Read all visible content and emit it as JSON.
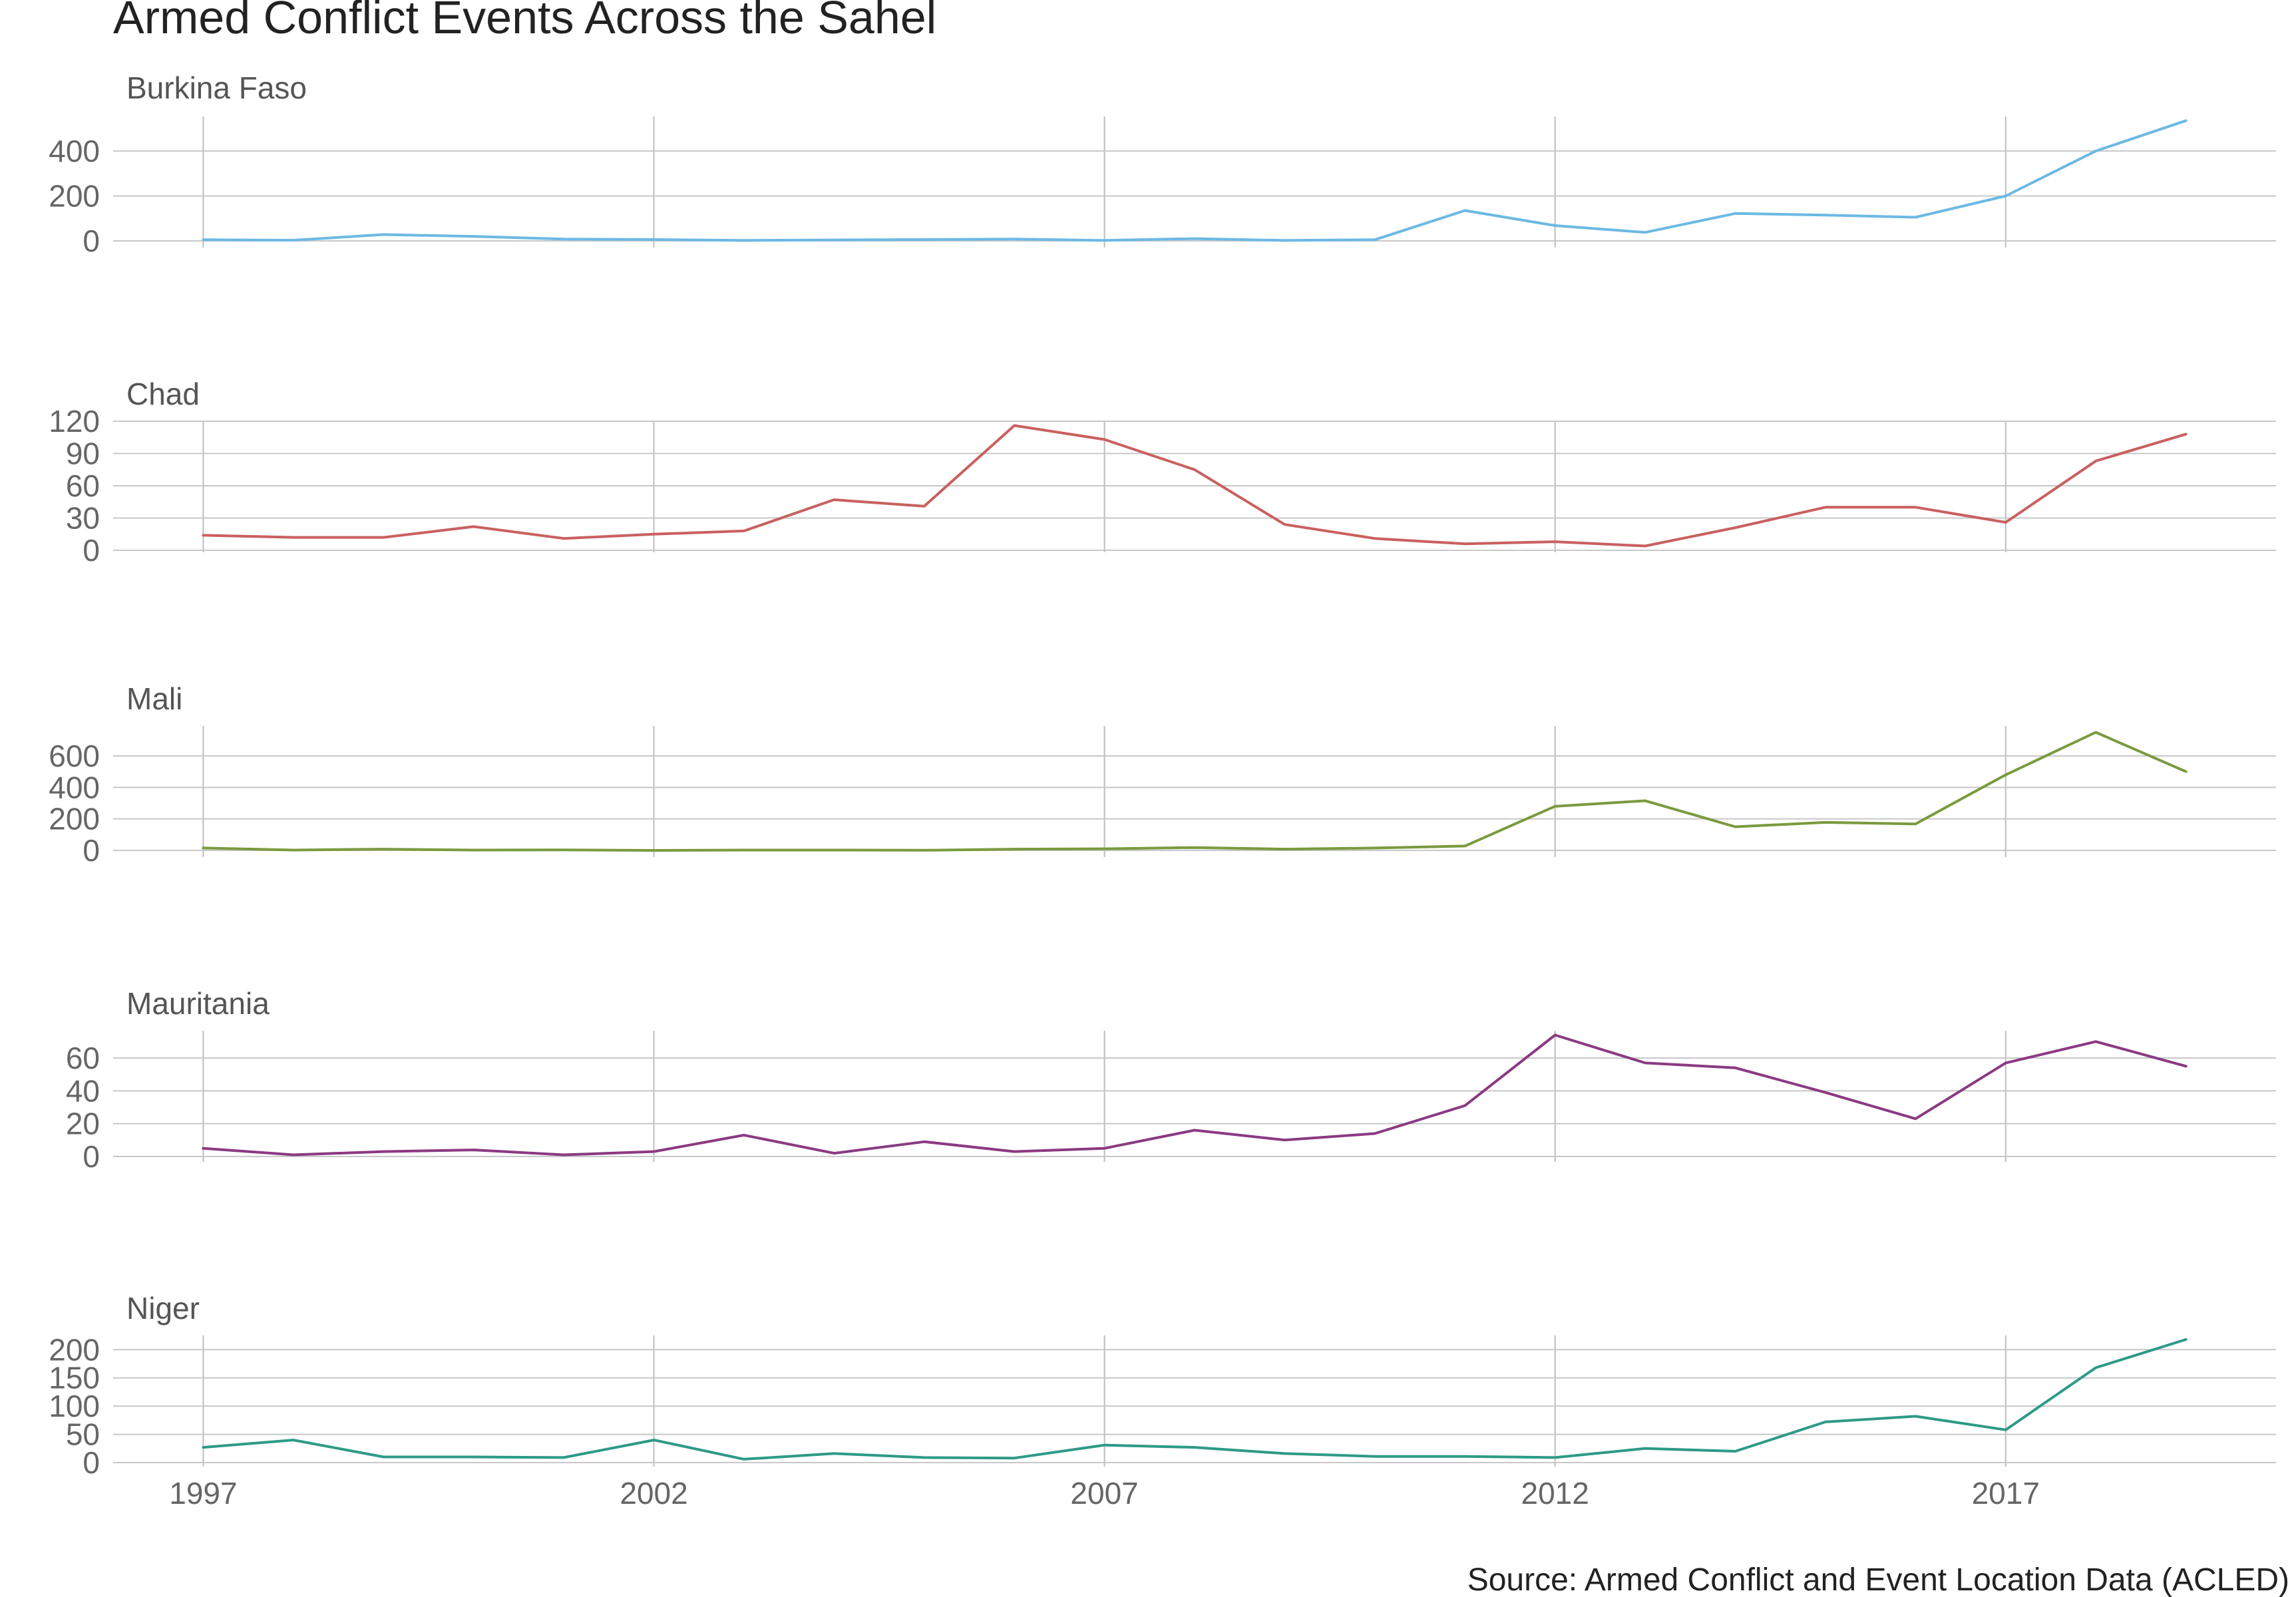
{
  "chart_data": {
    "type": "line",
    "title": "Armed Conflict Events Across the Sahel",
    "source": "Source: Armed Conflict and Event Location Data (ACLED)",
    "x": [
      1997,
      1998,
      1999,
      2000,
      2001,
      2002,
      2003,
      2004,
      2005,
      2006,
      2007,
      2008,
      2009,
      2010,
      2011,
      2012,
      2013,
      2014,
      2015,
      2016,
      2017,
      2018,
      2019
    ],
    "x_ticks": [
      1997,
      2002,
      2007,
      2012,
      2017
    ],
    "xlim": [
      1996,
      2020
    ],
    "grid": true,
    "legend": "none",
    "panels": [
      {
        "name": "Burkina Faso",
        "color": "#6cb9e3",
        "ylim": [
          0,
          530
        ],
        "y_ticks": [
          0,
          200,
          400
        ],
        "values": [
          5,
          3,
          28,
          20,
          8,
          6,
          2,
          4,
          6,
          8,
          2,
          10,
          2,
          5,
          135,
          68,
          38,
          122,
          115,
          105,
          200,
          400,
          535
        ]
      },
      {
        "name": "Chad",
        "color": "#c96060",
        "ylim": [
          0,
          120
        ],
        "y_ticks": [
          0,
          30,
          60,
          90,
          120
        ],
        "values": [
          14,
          12,
          12,
          22,
          11,
          15,
          18,
          47,
          41,
          116,
          103,
          75,
          24,
          11,
          6,
          8,
          4,
          21,
          40,
          40,
          26,
          83,
          108
        ]
      },
      {
        "name": "Mali",
        "color": "#7a9a3f",
        "ylim": [
          0,
          790
        ],
        "y_ticks": [
          0,
          200,
          400,
          600
        ],
        "values": [
          15,
          2,
          8,
          2,
          3,
          0,
          2,
          2,
          1,
          8,
          10,
          18,
          8,
          15,
          28,
          280,
          315,
          150,
          178,
          168,
          480,
          750,
          500
        ]
      },
      {
        "name": "Mauritania",
        "color": "#8b3a82",
        "ylim": [
          0,
          75
        ],
        "y_ticks": [
          0,
          20,
          40,
          60
        ],
        "values": [
          5,
          1,
          3,
          4,
          1,
          3,
          13,
          2,
          9,
          3,
          5,
          16,
          10,
          14,
          31,
          74,
          57,
          54,
          39,
          23,
          57,
          70,
          55
        ]
      },
      {
        "name": "Niger",
        "color": "#2e9a86",
        "ylim": [
          0,
          218
        ],
        "y_ticks": [
          0,
          50,
          100,
          150,
          200
        ],
        "values": [
          27,
          40,
          10,
          10,
          9,
          40,
          6,
          16,
          9,
          8,
          31,
          27,
          16,
          11,
          11,
          9,
          25,
          20,
          72,
          82,
          58,
          168,
          218
        ]
      }
    ]
  }
}
